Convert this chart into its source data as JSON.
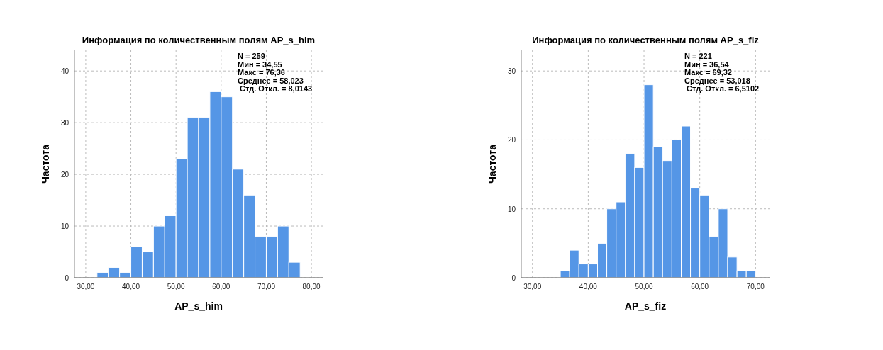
{
  "chart_data": [
    {
      "type": "histogram",
      "title": "Информация по количественным полям AP_s_him",
      "xlabel": "AP_s_him",
      "ylabel": "Частота",
      "bins": [
        32.5,
        35,
        37.5,
        40,
        42.5,
        45,
        47.5,
        50,
        52.5,
        55,
        57.5,
        60,
        62.5,
        65,
        67.5,
        70,
        72.5,
        75,
        77.5
      ],
      "values": [
        1,
        2,
        1,
        6,
        5,
        10,
        12,
        23,
        31,
        31,
        36,
        35,
        21,
        16,
        8,
        8,
        10,
        3
      ],
      "color": "#5596e6",
      "xlim": [
        27.5,
        82.5
      ],
      "ylim": [
        0,
        44
      ],
      "xticks": [
        {
          "value": 30,
          "label": "30,00"
        },
        {
          "value": 40,
          "label": "40,00"
        },
        {
          "value": 50,
          "label": "50,00"
        },
        {
          "value": 60,
          "label": "60,00"
        },
        {
          "value": 70,
          "label": "70,00"
        },
        {
          "value": 80,
          "label": "80,00"
        }
      ],
      "yticks": [
        0,
        10,
        20,
        30,
        40
      ],
      "grid": true,
      "annotations": [
        "N = 259",
        "Мин = 34,55",
        "Макс = 76,36",
        "Среднее = 58,023",
        " Стд. Откл. = 8,0143"
      ]
    },
    {
      "type": "histogram",
      "title": "Информация по количественным полям AP_s_fiz",
      "xlabel": "AP_s_fiz",
      "ylabel": "Частота",
      "bins": [
        35,
        36.67,
        38.33,
        40,
        41.67,
        43.33,
        45,
        46.67,
        48.33,
        50,
        51.67,
        53.33,
        55,
        56.67,
        58.33,
        60,
        61.67,
        63.33,
        65,
        66.67,
        68.33,
        70
      ],
      "values": [
        1,
        4,
        2,
        2,
        5,
        10,
        11,
        18,
        16,
        28,
        19,
        17,
        20,
        22,
        13,
        12,
        6,
        10,
        3,
        1,
        1
      ],
      "color": "#5596e6",
      "xlim": [
        28,
        72.5
      ],
      "ylim": [
        0,
        33
      ],
      "xticks": [
        {
          "value": 30,
          "label": "30,00"
        },
        {
          "value": 40,
          "label": "40,00"
        },
        {
          "value": 50,
          "label": "50,00"
        },
        {
          "value": 60,
          "label": "60,00"
        },
        {
          "value": 70,
          "label": "70,00"
        }
      ],
      "yticks": [
        0,
        10,
        20,
        30
      ],
      "grid": true,
      "annotations": [
        "N = 221",
        "Мин = 36,54",
        "Макс = 69,32",
        "Среднее = 53,018",
        " Стд. Откл. = 6,5102"
      ]
    }
  ]
}
